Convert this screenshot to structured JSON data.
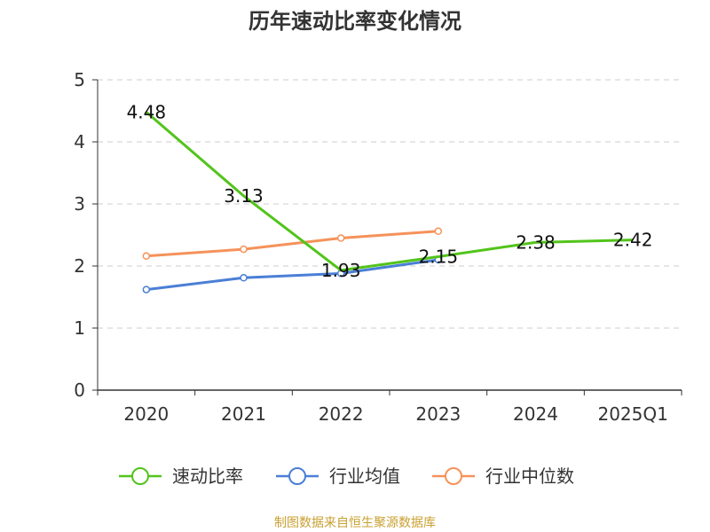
{
  "chart_data": {
    "type": "line",
    "title": "历年速动比率变化情况",
    "categories": [
      "2020",
      "2021",
      "2022",
      "2023",
      "2024",
      "2025Q1"
    ],
    "ylim": [
      0,
      5
    ],
    "yticks": [
      "0",
      "1",
      "2",
      "3",
      "4",
      "5"
    ],
    "grid": true,
    "legend_position": "bottom",
    "series": [
      {
        "name": "速动比率",
        "color": "#52c41a",
        "values": [
          4.48,
          3.13,
          1.93,
          2.15,
          2.38,
          2.42
        ],
        "labels": [
          "4.48",
          "3.13",
          "1.93",
          "2.15",
          "2.38",
          "2.42"
        ],
        "show_labels": true
      },
      {
        "name": "行业均值",
        "color": "#4a7fd6",
        "values": [
          1.62,
          1.81,
          1.88,
          2.1,
          null,
          null
        ],
        "show_labels": false
      },
      {
        "name": "行业中位数",
        "color": "#f5925a",
        "values": [
          2.16,
          2.27,
          2.45,
          2.56,
          null,
          null
        ],
        "show_labels": false
      }
    ],
    "source": "制图数据来自恒生聚源数据库",
    "source_color": "#c9a033"
  }
}
